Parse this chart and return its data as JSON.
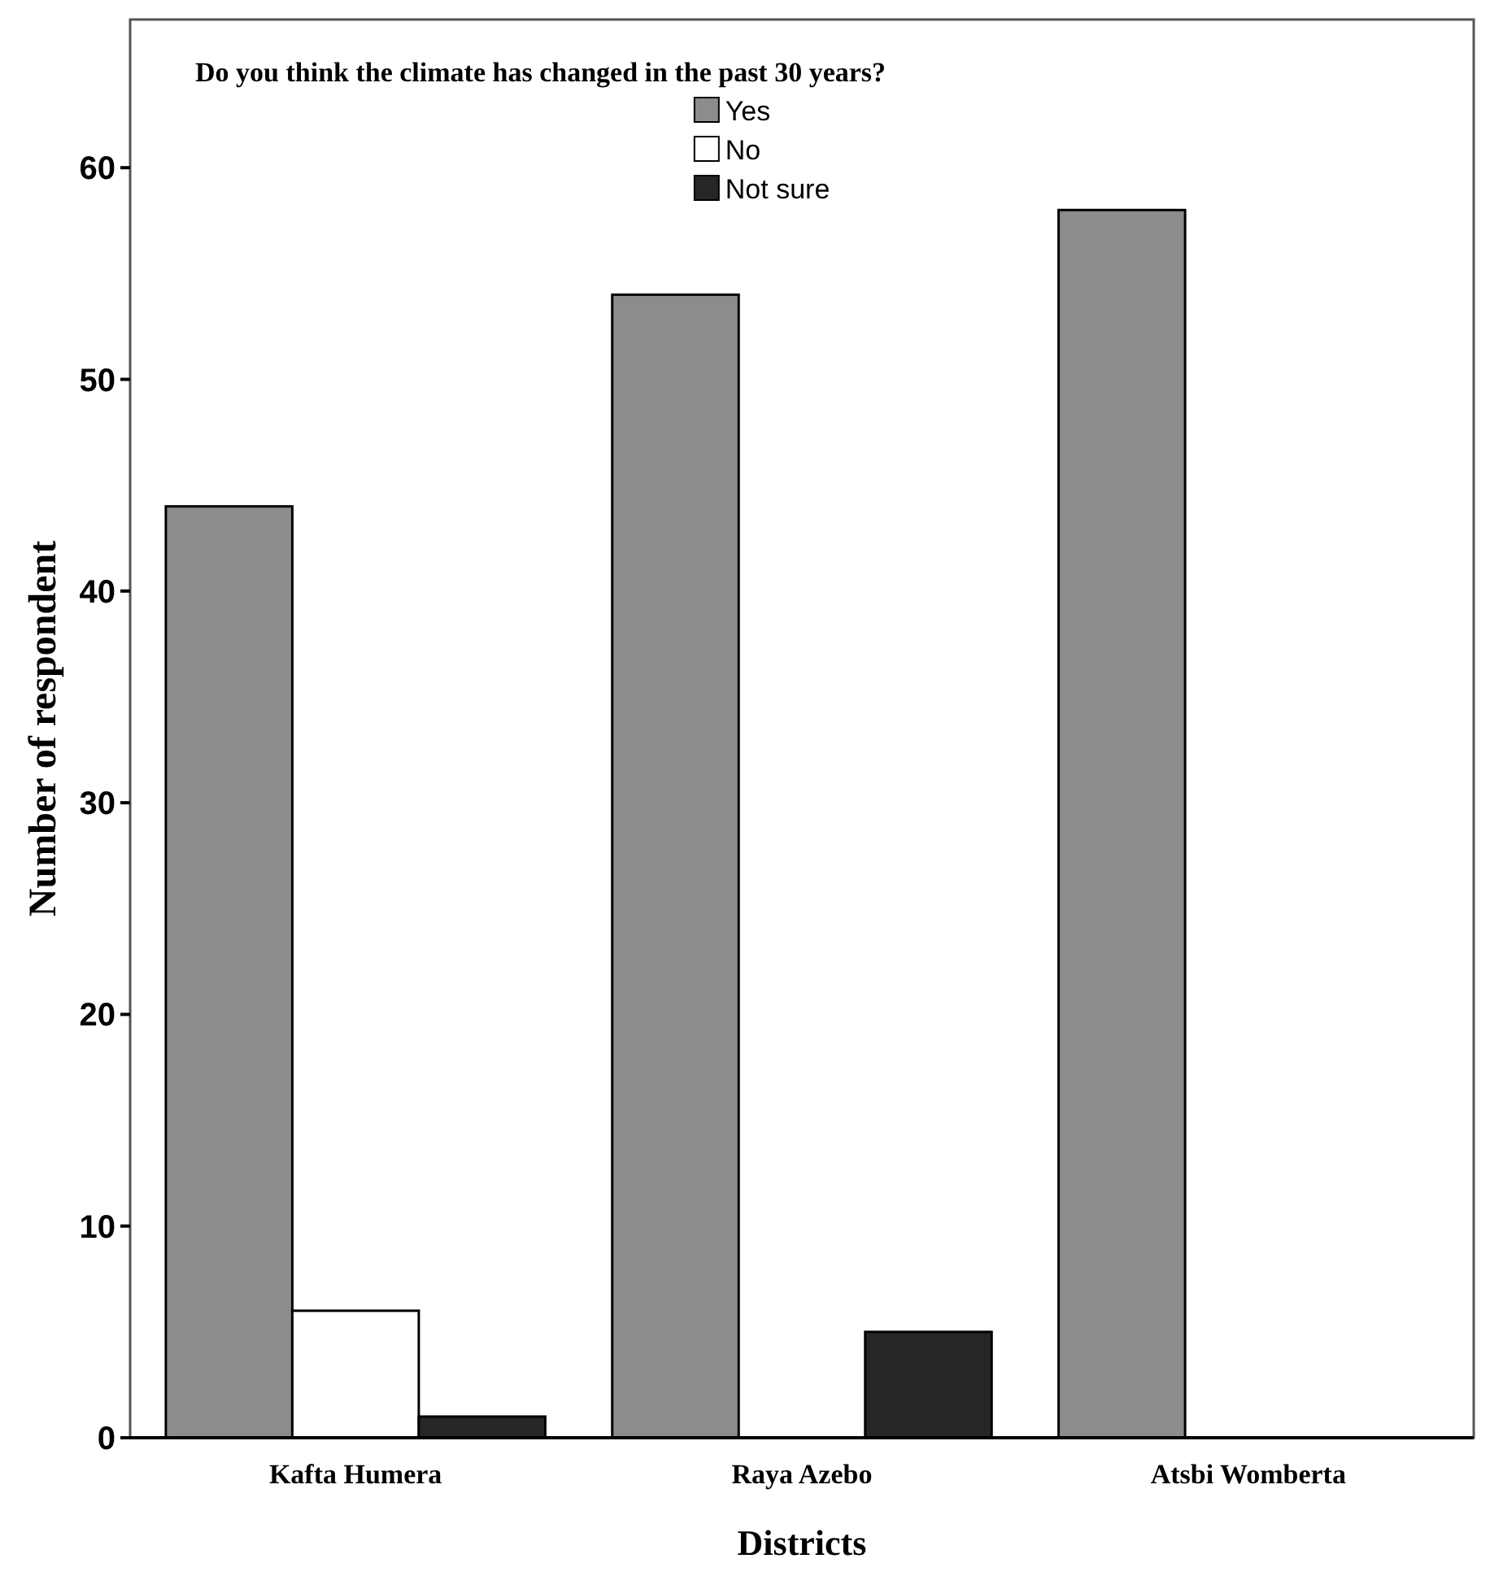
{
  "chart_data": {
    "type": "bar",
    "title": "Do you think the climate has changed in the past 30 years?",
    "xlabel": "Districts",
    "ylabel": "Number of respondent",
    "categories": [
      "Kafta Humera",
      "Raya Azebo",
      "Atsbi Womberta"
    ],
    "series": [
      {
        "name": "Yes",
        "color": "#8c8c8c",
        "values": [
          44,
          54,
          58
        ]
      },
      {
        "name": "No",
        "color": "#ffffff",
        "values": [
          6,
          0,
          0
        ]
      },
      {
        "name": "Not sure",
        "color": "#262626",
        "values": [
          1,
          5,
          0
        ]
      }
    ],
    "ylim": [
      0,
      67
    ],
    "yticks": [
      0,
      10,
      20,
      30,
      40,
      50,
      60
    ],
    "grid": false,
    "legend": "top"
  }
}
